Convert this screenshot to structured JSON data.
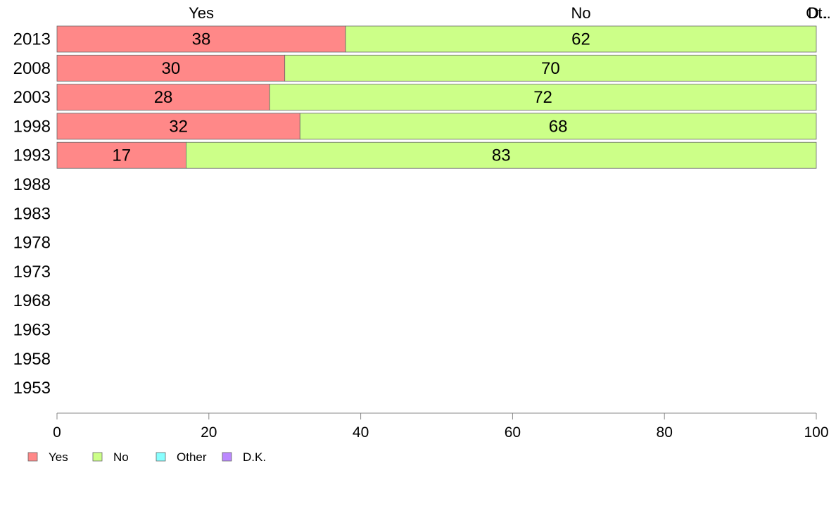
{
  "chart_data": {
    "type": "bar",
    "orientation": "horizontal",
    "stacked": true,
    "categories": [
      "2013",
      "2008",
      "2003",
      "1998",
      "1993",
      "1988",
      "1983",
      "1978",
      "1973",
      "1968",
      "1963",
      "1958",
      "1953"
    ],
    "series": [
      {
        "name": "Yes",
        "color": "#ff8888",
        "values": [
          38,
          30,
          28,
          32,
          17,
          null,
          null,
          null,
          null,
          null,
          null,
          null,
          null
        ]
      },
      {
        "name": "No",
        "color": "#ccff88",
        "values": [
          62,
          70,
          72,
          68,
          83,
          null,
          null,
          null,
          null,
          null,
          null,
          null,
          null
        ]
      },
      {
        "name": "Other",
        "color": "#88ffff",
        "values": [
          0,
          0,
          0,
          0,
          0,
          null,
          null,
          null,
          null,
          null,
          null,
          null,
          null
        ]
      },
      {
        "name": "D.K.",
        "color": "#bb88ff",
        "values": [
          0,
          0,
          0,
          0,
          0,
          null,
          null,
          null,
          null,
          null,
          null,
          null,
          null
        ]
      }
    ],
    "top_labels": [
      "Yes",
      "No",
      "D..",
      "Ot.."
    ],
    "xlim": [
      0,
      100
    ],
    "xticks": [
      "0",
      "20",
      "40",
      "60",
      "80",
      "100"
    ],
    "xlabel": "",
    "ylabel": "",
    "title": "",
    "grid": false,
    "legend_position": "bottom-left"
  }
}
